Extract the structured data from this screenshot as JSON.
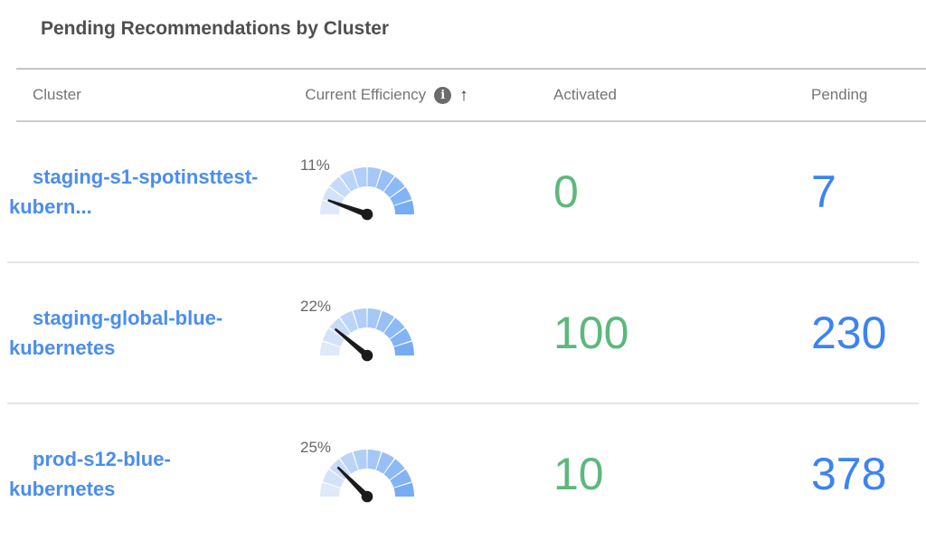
{
  "title": "Pending Recommendations by Cluster",
  "table": {
    "columns": [
      {
        "label": "Cluster"
      },
      {
        "label": "Current Efficiency",
        "info_icon_glyph": "i",
        "sort_icon": "↑",
        "sort": "ascending"
      },
      {
        "label": "Activated"
      },
      {
        "label": "Pending"
      }
    ],
    "rows": [
      {
        "name": "staging-s1-spotinsttest-kubern...",
        "name_lines": [
          "staging-s1-spotinsttest-",
          "kubern..."
        ],
        "efficiency_pct": 11,
        "efficiency_label": "11%",
        "activated": "0",
        "pending": "7"
      },
      {
        "name": "staging-global-blue-kubernetes",
        "name_lines": [
          "staging-global-blue-",
          "kubernetes"
        ],
        "efficiency_pct": 22,
        "efficiency_label": "22%",
        "activated": "100",
        "pending": "230"
      },
      {
        "name": "prod-s12-blue-kubernetes",
        "name_lines": [
          "prod-s12-blue-",
          "kubernetes"
        ],
        "efficiency_pct": 25,
        "efficiency_label": "25%",
        "activated": "10",
        "pending": "378"
      }
    ]
  },
  "chart_data": [
    {
      "type": "gauge",
      "label": "11%",
      "value": 11,
      "range": [
        0,
        100
      ],
      "unit": "%"
    },
    {
      "type": "gauge",
      "label": "22%",
      "value": 22,
      "range": [
        0,
        100
      ],
      "unit": "%"
    },
    {
      "type": "gauge",
      "label": "25%",
      "value": 25,
      "range": [
        0,
        100
      ],
      "unit": "%"
    }
  ],
  "colors": {
    "link_blue": "#4a8df0",
    "activated_green": "#5cb87c",
    "pending_blue": "#3d83f1",
    "gauge_arc_light": "#dee9fa",
    "gauge_arc_dark": "#76acf4",
    "gauge_needle": "#1b1b1b",
    "header_gray": "#757575",
    "title_gray": "#4f4f4f"
  }
}
